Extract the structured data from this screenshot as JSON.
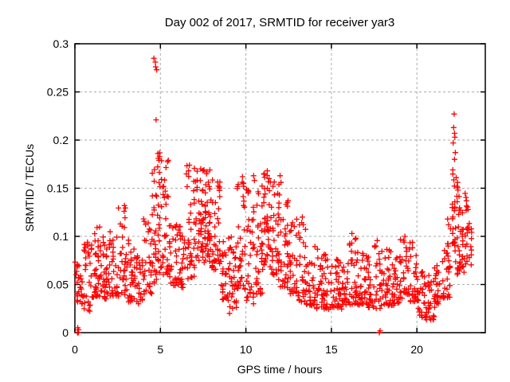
{
  "chart_data": {
    "type": "scatter",
    "title": "Day 002 of 2017, SRMTID for receiver yar3",
    "xlabel": "GPS time / hours",
    "ylabel": "SRMTID / TECUs",
    "xlim": [
      0,
      24
    ],
    "ylim": [
      0,
      0.3
    ],
    "xticks": {
      "values": [
        0,
        5,
        10,
        15,
        20
      ],
      "labels": [
        "0",
        "5",
        "10",
        "15",
        "20"
      ]
    },
    "yticks": {
      "values": [
        0,
        0.05,
        0.1,
        0.15,
        0.2,
        0.25,
        0.3
      ],
      "labels": [
        "0",
        "0.05",
        "0.1",
        "0.15",
        "0.2",
        "0.25",
        "0.3"
      ]
    },
    "grid": true,
    "legend": "none",
    "background_color": "#ffffff",
    "axis_color": "#000000",
    "grid_color": "#aaaaaa",
    "marker": {
      "shape": "plus",
      "color": "#ff0000",
      "size": 7
    },
    "seed": 20170102,
    "notable_points": [
      [
        0.15,
        0.0
      ],
      [
        0.2,
        0.0
      ],
      [
        0.22,
        0.003
      ],
      [
        0.17,
        0.005
      ],
      [
        4.62,
        0.285
      ],
      [
        4.7,
        0.281
      ],
      [
        4.72,
        0.276
      ],
      [
        4.78,
        0.273
      ],
      [
        4.75,
        0.221
      ],
      [
        4.85,
        0.186
      ],
      [
        4.88,
        0.181
      ],
      [
        4.92,
        0.179
      ],
      [
        2.9,
        0.132
      ],
      [
        2.88,
        0.126
      ],
      [
        6.7,
        0.174
      ],
      [
        6.65,
        0.168
      ],
      [
        7.55,
        0.169
      ],
      [
        7.7,
        0.165
      ],
      [
        9.8,
        0.162
      ],
      [
        9.85,
        0.155
      ],
      [
        10.45,
        0.163
      ],
      [
        10.5,
        0.158
      ],
      [
        11.25,
        0.168
      ],
      [
        11.35,
        0.16
      ],
      [
        12.0,
        0.163
      ],
      [
        12.05,
        0.156
      ],
      [
        9.04,
        0.02
      ],
      [
        13.3,
        0.12
      ],
      [
        13.35,
        0.112
      ],
      [
        16.2,
        0.103
      ],
      [
        17.8,
        0.0
      ],
      [
        17.85,
        0.002
      ],
      [
        19.3,
        0.1
      ],
      [
        19.25,
        0.094
      ],
      [
        22.18,
        0.227
      ],
      [
        22.15,
        0.213
      ],
      [
        22.2,
        0.207
      ],
      [
        22.22,
        0.203
      ],
      [
        22.12,
        0.197
      ],
      [
        22.25,
        0.187
      ],
      [
        22.2,
        0.18
      ],
      [
        22.1,
        0.169
      ],
      [
        22.3,
        0.161
      ],
      [
        22.35,
        0.152
      ],
      [
        22.4,
        0.148
      ],
      [
        21.8,
        0.118
      ],
      [
        21.85,
        0.112
      ]
    ],
    "density_envelope": {
      "columns": [
        "x_start",
        "x_end",
        "count",
        "y_min",
        "y_max",
        "skew_power"
      ],
      "bins": [
        [
          0.0,
          0.5,
          28,
          0.03,
          0.075,
          1.5
        ],
        [
          0.5,
          1.0,
          30,
          0.022,
          0.096,
          1.5
        ],
        [
          1.0,
          1.5,
          34,
          0.035,
          0.118,
          1.6
        ],
        [
          1.5,
          2.0,
          34,
          0.035,
          0.1,
          1.5
        ],
        [
          2.0,
          2.5,
          30,
          0.038,
          0.105,
          1.5
        ],
        [
          2.5,
          3.0,
          30,
          0.038,
          0.132,
          1.7
        ],
        [
          3.0,
          3.5,
          30,
          0.032,
          0.1,
          1.6
        ],
        [
          3.5,
          4.0,
          26,
          0.03,
          0.082,
          1.4
        ],
        [
          4.0,
          4.5,
          30,
          0.04,
          0.12,
          1.5
        ],
        [
          4.5,
          5.0,
          44,
          0.05,
          0.19,
          1.3
        ],
        [
          5.0,
          5.5,
          36,
          0.06,
          0.18,
          1.4
        ],
        [
          5.5,
          6.0,
          30,
          0.048,
          0.12,
          1.4
        ],
        [
          6.0,
          6.5,
          30,
          0.045,
          0.115,
          1.4
        ],
        [
          6.5,
          7.0,
          36,
          0.055,
          0.175,
          1.4
        ],
        [
          7.0,
          7.5,
          40,
          0.075,
          0.17,
          1.2
        ],
        [
          7.5,
          8.0,
          44,
          0.07,
          0.17,
          1.1
        ],
        [
          8.0,
          8.5,
          40,
          0.065,
          0.16,
          1.2
        ],
        [
          8.5,
          9.0,
          30,
          0.033,
          0.115,
          1.4
        ],
        [
          9.0,
          9.5,
          30,
          0.025,
          0.1,
          1.4
        ],
        [
          9.5,
          10.0,
          36,
          0.045,
          0.16,
          1.6
        ],
        [
          10.0,
          10.5,
          34,
          0.03,
          0.15,
          1.5
        ],
        [
          10.5,
          11.0,
          34,
          0.04,
          0.158,
          1.5
        ],
        [
          11.0,
          11.5,
          40,
          0.06,
          0.168,
          1.3
        ],
        [
          11.5,
          12.0,
          36,
          0.055,
          0.163,
          1.4
        ],
        [
          12.0,
          12.5,
          34,
          0.045,
          0.15,
          1.4
        ],
        [
          12.5,
          13.0,
          30,
          0.04,
          0.12,
          1.5
        ],
        [
          13.0,
          13.5,
          28,
          0.032,
          0.12,
          1.7
        ],
        [
          13.5,
          14.0,
          28,
          0.028,
          0.075,
          1.4
        ],
        [
          14.0,
          14.5,
          30,
          0.025,
          0.09,
          1.5
        ],
        [
          14.5,
          15.0,
          28,
          0.024,
          0.088,
          1.6
        ],
        [
          15.0,
          15.5,
          30,
          0.026,
          0.08,
          1.5
        ],
        [
          15.5,
          16.0,
          28,
          0.024,
          0.075,
          1.5
        ],
        [
          16.0,
          16.5,
          30,
          0.028,
          0.103,
          1.7
        ],
        [
          16.5,
          17.0,
          30,
          0.028,
          0.085,
          1.5
        ],
        [
          17.0,
          17.5,
          28,
          0.026,
          0.08,
          1.5
        ],
        [
          17.5,
          18.0,
          28,
          0.025,
          0.096,
          1.5
        ],
        [
          18.0,
          18.5,
          30,
          0.028,
          0.095,
          1.6
        ],
        [
          18.5,
          19.0,
          28,
          0.028,
          0.085,
          1.5
        ],
        [
          19.0,
          19.5,
          30,
          0.035,
          0.1,
          1.5
        ],
        [
          19.5,
          20.0,
          28,
          0.032,
          0.095,
          1.5
        ],
        [
          20.0,
          20.5,
          28,
          0.016,
          0.065,
          1.4
        ],
        [
          20.5,
          21.0,
          28,
          0.013,
          0.06,
          1.4
        ],
        [
          21.0,
          21.5,
          28,
          0.022,
          0.075,
          1.4
        ],
        [
          21.5,
          22.0,
          32,
          0.036,
          0.12,
          1.5
        ],
        [
          22.0,
          22.5,
          44,
          0.06,
          0.165,
          1.0
        ],
        [
          22.5,
          23.0,
          34,
          0.06,
          0.145,
          1.1
        ],
        [
          23.0,
          23.3,
          10,
          0.07,
          0.115,
          1.2
        ]
      ]
    }
  }
}
